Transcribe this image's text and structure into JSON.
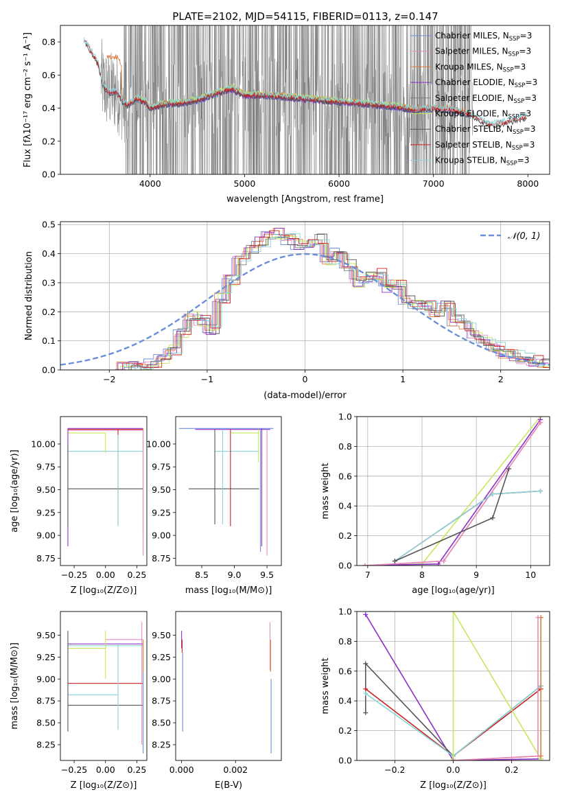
{
  "figure_title": "PLATE=2102, MJD=54115, FIBERID=0113, z=0.147",
  "colors": {
    "Chabrier MILES": "#6a8fd8",
    "Salpeter MILES": "#e58bc0",
    "Kroupa MILES": "#e07b39",
    "Chabrier ELODIE": "#8b2fc9",
    "Salpeter ELODIE": "#7a7a7a",
    "Kroupa ELODIE": "#c5e85a",
    "Chabrier STELIB": "#555555",
    "Salpeter STELIB": "#cc1f1f",
    "Kroupa STELIB": "#86d4dc",
    "data": "#808080",
    "normal": "#6a8fd8"
  },
  "chart_data": [
    {
      "id": "spectrum",
      "type": "line",
      "xlabel": "wavelength [Angstrom, rest frame]",
      "ylabel": "Flux [fλ10⁻¹⁷ erg cm⁻² s⁻¹ A⁻¹]",
      "xlim": [
        3050,
        8230
      ],
      "ylim": [
        0,
        0.9
      ],
      "xticks": [
        4000,
        5000,
        6000,
        7000,
        8000
      ],
      "yticks": [
        0.0,
        0.2,
        0.4,
        0.6,
        0.8
      ],
      "legend_position": "top-right",
      "legend": [
        {
          "name": "Chabrier MILES",
          "suffix": "N",
          "sub": "SSP",
          "tail": "=3"
        },
        {
          "name": "Salpeter MILES",
          "suffix": "N",
          "sub": "SSP",
          "tail": "=3"
        },
        {
          "name": "Kroupa MILES",
          "suffix": "N",
          "sub": "SSP",
          "tail": "=3"
        },
        {
          "name": "Chabrier ELODIE",
          "suffix": "N",
          "sub": "SSP",
          "tail": "=3"
        },
        {
          "name": "Salpeter ELODIE",
          "suffix": "N",
          "sub": "SSP",
          "tail": "=3"
        },
        {
          "name": "Kroupa ELODIE",
          "suffix": "N",
          "sub": "SSP",
          "tail": "=3"
        },
        {
          "name": "Chabrier STELIB",
          "suffix": "N",
          "sub": "SSP",
          "tail": "=3"
        },
        {
          "name": "Salpeter STELIB",
          "suffix": "N",
          "sub": "SSP",
          "tail": "=3"
        },
        {
          "name": "Kroupa STELIB",
          "suffix": "N",
          "sub": "SSP",
          "tail": "=3"
        }
      ],
      "continuum": {
        "x": [
          3300,
          3340,
          3400,
          3450,
          3500,
          3560,
          3650,
          3700,
          3760,
          3850,
          3950,
          4000,
          4100,
          4200,
          4300,
          4500,
          4700,
          4860,
          5000,
          5200,
          5400,
          5600,
          5800,
          6000,
          6200,
          6400,
          6600,
          6700,
          6800,
          7000,
          7200,
          7400,
          7600,
          7800,
          7990
        ],
        "y": [
          0.81,
          0.78,
          0.72,
          0.67,
          0.54,
          0.5,
          0.5,
          0.45,
          0.42,
          0.46,
          0.44,
          0.4,
          0.42,
          0.43,
          0.43,
          0.45,
          0.49,
          0.52,
          0.48,
          0.48,
          0.47,
          0.46,
          0.45,
          0.44,
          0.43,
          0.42,
          0.41,
          0.4,
          0.39,
          0.4,
          0.39,
          0.36,
          0.3,
          0.32,
          0.35
        ]
      },
      "data_noise": {
        "x_start": 3480,
        "x_end": 7420,
        "dense_start": 3720,
        "dense_end": 7400
      }
    },
    {
      "id": "residuals",
      "type": "histogram",
      "xlabel": "(data-model)/error",
      "ylabel": "Normed distribution",
      "xlim": [
        -2.5,
        2.5
      ],
      "ylim": [
        0,
        0.51
      ],
      "xticks": [
        -2,
        -1,
        0,
        1,
        2
      ],
      "yticks": [
        0.0,
        0.1,
        0.2,
        0.3,
        0.4,
        0.5
      ],
      "grid": true,
      "legend_position": "top-right",
      "legend_label": "𝒩(0, 1)",
      "bin_edges": [
        -1.9,
        -1.8,
        -1.7,
        -1.6,
        -1.5,
        -1.4,
        -1.3,
        -1.2,
        -1.1,
        -1.0,
        -0.9,
        -0.8,
        -0.7,
        -0.6,
        -0.5,
        -0.4,
        -0.3,
        -0.2,
        -0.1,
        0.0,
        0.1,
        0.2,
        0.3,
        0.4,
        0.5,
        0.6,
        0.7,
        0.8,
        0.9,
        1.0,
        1.1,
        1.2,
        1.3,
        1.4,
        1.5,
        1.6,
        1.7,
        1.8,
        1.9,
        2.0,
        2.1,
        2.2,
        2.3,
        2.4,
        2.5
      ],
      "base_counts": [
        0.01,
        0.01,
        0.015,
        0.02,
        0.04,
        0.07,
        0.13,
        0.19,
        0.17,
        0.14,
        0.25,
        0.31,
        0.38,
        0.42,
        0.44,
        0.46,
        0.47,
        0.45,
        0.43,
        0.44,
        0.45,
        0.38,
        0.41,
        0.36,
        0.3,
        0.32,
        0.33,
        0.28,
        0.29,
        0.24,
        0.22,
        0.22,
        0.2,
        0.22,
        0.17,
        0.15,
        0.12,
        0.1,
        0.08,
        0.06,
        0.05,
        0.04,
        0.03,
        0.02
      ],
      "normal": {
        "mu": 0,
        "sigma": 1
      }
    },
    {
      "id": "age-vs-Z",
      "type": "errorbar",
      "xlabel": "Z [log₁₀(Z/Z⊙)]",
      "ylabel": "age  [log₁₀(age/yr)]",
      "xlim": [
        -0.36,
        0.33
      ],
      "ylim": [
        8.67,
        10.3
      ],
      "xticks": [
        -0.25,
        0.0,
        0.25
      ],
      "xticklabels": [
        "−0.25",
        "0.00",
        "0.25"
      ],
      "yticks": [
        8.75,
        9.0,
        9.25,
        9.5,
        9.75,
        10.0
      ],
      "yticklabels": [
        "8.75",
        "9.00",
        "9.25",
        "9.50",
        "9.75",
        "10.00"
      ],
      "segments": [
        {
          "s": "Chabrier ELODIE",
          "x": [
            -0.3,
            0.3
          ],
          "y": 10.17
        },
        {
          "s": "Salpeter STELIB",
          "x": [
            -0.3,
            0.3
          ],
          "y": 10.16
        },
        {
          "s": "Salpeter MILES",
          "x": [
            -0.3,
            0.3
          ],
          "y": 10.15
        },
        {
          "s": "Kroupa ELODIE",
          "x": [
            -0.3,
            0.0
          ],
          "y": 10.12
        },
        {
          "s": "Kroupa STELIB",
          "x": [
            -0.3,
            0.3
          ],
          "y": 9.92
        },
        {
          "s": "Chabrier STELIB",
          "x": [
            -0.3,
            0.3
          ],
          "y": 9.51
        },
        {
          "s": "Chabrier ELODIE",
          "x": -0.3,
          "y": [
            8.88,
            10.17
          ]
        },
        {
          "s": "Chabrier STELIB",
          "x": -0.3,
          "y": [
            9.1,
            10.0
          ]
        },
        {
          "s": "Kroupa ELODIE",
          "x": 0.0,
          "y": [
            9.9,
            10.12
          ]
        },
        {
          "s": "Salpeter STELIB",
          "x": 0.1,
          "y": [
            9.12,
            10.16
          ]
        },
        {
          "s": "Kroupa STELIB",
          "x": 0.1,
          "y": [
            9.1,
            10.1
          ]
        },
        {
          "s": "Kroupa MILES",
          "x": 0.3,
          "y": [
            9.0,
            10.17
          ]
        },
        {
          "s": "Salpeter MILES",
          "x": 0.3,
          "y": [
            8.78,
            10.15
          ]
        }
      ]
    },
    {
      "id": "age-vs-mass",
      "type": "errorbar",
      "xlabel": "mass [log₁₀(M/M⊙)]",
      "ylabel": "",
      "xlim": [
        8.1,
        9.72
      ],
      "ylim": [
        8.67,
        10.3
      ],
      "xticks": [
        8.5,
        9.0,
        9.5
      ],
      "xticklabels": [
        "8.5",
        "9.0",
        "9.5"
      ],
      "yticks": [
        8.75,
        9.0,
        9.25,
        9.5,
        9.75,
        10.0
      ],
      "yticklabels": [
        "8.75",
        "9.00",
        "9.25",
        "9.50",
        "9.75",
        "10.00"
      ],
      "segments": [
        {
          "s": "Chabrier MILES",
          "x": [
            8.15,
            9.6
          ],
          "y": 10.17
        },
        {
          "s": "Chabrier ELODIE",
          "x": [
            8.4,
            9.55
          ],
          "y": 10.16
        },
        {
          "s": "Kroupa ELODIE",
          "x": [
            8.95,
            9.38
          ],
          "y": 10.12
        },
        {
          "s": "Kroupa STELIB",
          "x": [
            8.7,
            9.38
          ],
          "y": 9.92
        },
        {
          "s": "Chabrier STELIB",
          "x": [
            8.3,
            9.38
          ],
          "y": 9.51
        },
        {
          "s": "Chabrier STELIB",
          "x": 8.7,
          "y": [
            9.12,
            10.16
          ]
        },
        {
          "s": "Kroupa STELIB",
          "x": 8.82,
          "y": [
            9.12,
            10.16
          ]
        },
        {
          "s": "Salpeter STELIB",
          "x": 8.94,
          "y": [
            9.1,
            10.16
          ]
        },
        {
          "s": "Kroupa ELODIE",
          "x": 9.37,
          "y": [
            9.8,
            10.16
          ]
        },
        {
          "s": "Chabrier MILES",
          "x": 9.4,
          "y": [
            8.82,
            10.17
          ]
        },
        {
          "s": "Chabrier ELODIE",
          "x": 9.42,
          "y": [
            8.88,
            10.17
          ]
        },
        {
          "s": "Salpeter MILES",
          "x": 9.5,
          "y": [
            8.78,
            10.15
          ]
        }
      ]
    },
    {
      "id": "mass-weight-vs-age",
      "type": "line",
      "xlabel": "age  [log₁₀(age/yr)]",
      "ylabel": "mass weight",
      "xlim": [
        6.8,
        10.35
      ],
      "ylim": [
        0,
        1.0
      ],
      "xticks": [
        7,
        8,
        9,
        10
      ],
      "xticklabels": [
        "7",
        "8",
        "9",
        "10"
      ],
      "yticks": [
        0.0,
        0.2,
        0.4,
        0.6,
        0.8,
        1.0
      ],
      "yticklabels": [
        "0.0",
        "0.2",
        "0.4",
        "0.6",
        "0.8",
        "1.0"
      ],
      "grid": true,
      "series": [
        {
          "s": "Kroupa ELODIE",
          "x": [
            6.95,
            8.0,
            10.18
          ],
          "y": [
            0.0,
            0.01,
            1.0
          ]
        },
        {
          "s": "Chabrier ELODIE",
          "x": [
            6.95,
            8.3,
            10.18
          ],
          "y": [
            0.0,
            0.01,
            0.98
          ]
        },
        {
          "s": "Kroupa MILES",
          "x": [
            6.95,
            8.4,
            10.18
          ],
          "y": [
            0.0,
            0.03,
            0.96
          ]
        },
        {
          "s": "Salpeter MILES",
          "x": [
            6.95,
            8.4,
            10.18
          ],
          "y": [
            0.0,
            0.03,
            0.96
          ]
        },
        {
          "s": "Salpeter STELIB",
          "x": [
            7.5,
            9.3,
            10.18
          ],
          "y": [
            0.03,
            0.48,
            0.5
          ]
        },
        {
          "s": "Kroupa STELIB",
          "x": [
            7.5,
            9.3,
            10.18
          ],
          "y": [
            0.03,
            0.48,
            0.5
          ]
        },
        {
          "s": "Chabrier STELIB",
          "x": [
            7.5,
            9.3,
            9.6
          ],
          "y": [
            0.03,
            0.32,
            0.65
          ]
        }
      ]
    },
    {
      "id": "mass-vs-Z",
      "type": "errorbar",
      "xlabel": "Z [log₁₀(Z/Z⊙)]",
      "ylabel": "mass [log₁₀(M/M⊙)]",
      "xlim": [
        -0.36,
        0.33
      ],
      "ylim": [
        8.07,
        9.77
      ],
      "xticks": [
        -0.25,
        0.0,
        0.25
      ],
      "xticklabels": [
        "−0.25",
        "0.00",
        "0.25"
      ],
      "yticks": [
        8.25,
        8.5,
        8.75,
        9.0,
        9.25,
        9.5
      ],
      "yticklabels": [
        "8.25",
        "8.50",
        "8.75",
        "9.00",
        "9.25",
        "9.50"
      ],
      "segments": [
        {
          "s": "Salpeter MILES",
          "x": [
            0.0,
            0.3
          ],
          "y": 9.45
        },
        {
          "s": "Chabrier ELODIE",
          "x": [
            -0.3,
            0.3
          ],
          "y": 9.4
        },
        {
          "s": "Kroupa STELIB",
          "x": [
            -0.3,
            0.3
          ],
          "y": 9.38
        },
        {
          "s": "Kroupa ELODIE",
          "x": [
            -0.3,
            0.0
          ],
          "y": 9.35
        },
        {
          "s": "Salpeter STELIB",
          "x": [
            -0.3,
            0.3
          ],
          "y": 8.95
        },
        {
          "s": "Kroupa STELIB",
          "x": [
            -0.3,
            0.1
          ],
          "y": 8.82
        },
        {
          "s": "Chabrier STELIB",
          "x": [
            -0.3,
            0.3
          ],
          "y": 8.7
        },
        {
          "s": "Chabrier STELIB",
          "x": -0.3,
          "y": [
            8.4,
            9.55
          ]
        },
        {
          "s": "Kroupa ELODIE",
          "x": 0.0,
          "y": [
            9.0,
            9.55
          ]
        },
        {
          "s": "Kroupa STELIB",
          "x": 0.1,
          "y": [
            8.42,
            9.4
          ]
        },
        {
          "s": "Salpeter MILES",
          "x": 0.29,
          "y": [
            8.25,
            9.65
          ]
        },
        {
          "s": "Chabrier MILES",
          "x": 0.3,
          "y": [
            8.15,
            9.1
          ]
        },
        {
          "s": "Kroupa MILES",
          "x": 0.3,
          "y": [
            9.08,
            9.45
          ]
        }
      ]
    },
    {
      "id": "mass-vs-EBV",
      "type": "errorbar",
      "xlabel": "E(B-V)",
      "ylabel": "",
      "xlim": [
        -0.00022,
        0.0037
      ],
      "ylim": [
        8.07,
        9.77
      ],
      "xticks": [
        0.0,
        0.002
      ],
      "xticklabels": [
        "0.000",
        "0.002"
      ],
      "yticks": [
        8.25,
        8.5,
        8.75,
        9.0,
        9.25,
        9.5
      ],
      "yticklabels": [
        "8.25",
        "8.50",
        "8.75",
        "9.00",
        "9.25",
        "9.50"
      ],
      "segments": [
        {
          "s": "Chabrier ELODIE",
          "x": 0.0,
          "y": [
            9.35,
            9.55
          ]
        },
        {
          "s": "Salpeter STELIB",
          "x": 2e-05,
          "y": [
            9.3,
            9.45
          ]
        },
        {
          "s": "Chabrier MILES",
          "x": 4e-05,
          "y": [
            8.4,
            9.3
          ]
        },
        {
          "s": "Salpeter MILES",
          "x": 0.00328,
          "y": [
            9.1,
            9.65
          ]
        },
        {
          "s": "Kroupa MILES",
          "x": 0.0033,
          "y": [
            9.08,
            9.45
          ]
        },
        {
          "s": "Chabrier MILES",
          "x": 0.00332,
          "y": [
            8.15,
            9.0
          ]
        }
      ]
    },
    {
      "id": "mass-weight-vs-Z",
      "type": "line",
      "xlabel": "Z [log₁₀(Z/Z⊙)]",
      "ylabel": "mass weight",
      "xlim": [
        -0.33,
        0.33
      ],
      "ylim": [
        0,
        1.0
      ],
      "xticks": [
        -0.2,
        0.0,
        0.2
      ],
      "xticklabels": [
        "−0.2",
        "0.0",
        "0.2"
      ],
      "yticks": [
        0.0,
        0.2,
        0.4,
        0.6,
        0.8,
        1.0
      ],
      "yticklabels": [
        "0.0",
        "0.2",
        "0.4",
        "0.6",
        "0.8",
        "1.0"
      ],
      "grid": true,
      "series": [
        {
          "s": "Chabrier ELODIE",
          "x": [
            -0.3,
            0.0,
            0.3
          ],
          "y": [
            0.98,
            0.0,
            0.01
          ]
        },
        {
          "s": "Chabrier STELIB",
          "x": [
            -0.3,
            -0.3,
            0.0,
            0.3
          ],
          "y": [
            0.32,
            0.65,
            0.03,
            0.5
          ]
        },
        {
          "s": "Salpeter STELIB",
          "x": [
            -0.3,
            0.0,
            0.3,
            0.3
          ],
          "y": [
            0.48,
            0.03,
            0.48,
            0.5
          ]
        },
        {
          "s": "Kroupa STELIB",
          "x": [
            -0.3,
            0.0,
            0.3
          ],
          "y": [
            0.45,
            0.03,
            0.5
          ]
        },
        {
          "s": "Kroupa ELODIE",
          "x": [
            0.0,
            0.0,
            0.3
          ],
          "y": [
            0.01,
            1.0,
            0.01
          ]
        },
        {
          "s": "Kroupa MILES",
          "x": [
            0.0,
            0.3,
            0.3
          ],
          "y": [
            0.0,
            0.03,
            0.96
          ]
        },
        {
          "s": "Salpeter MILES",
          "x": [
            0.0,
            0.29,
            0.29
          ],
          "y": [
            0.0,
            0.03,
            0.96
          ]
        }
      ]
    }
  ]
}
